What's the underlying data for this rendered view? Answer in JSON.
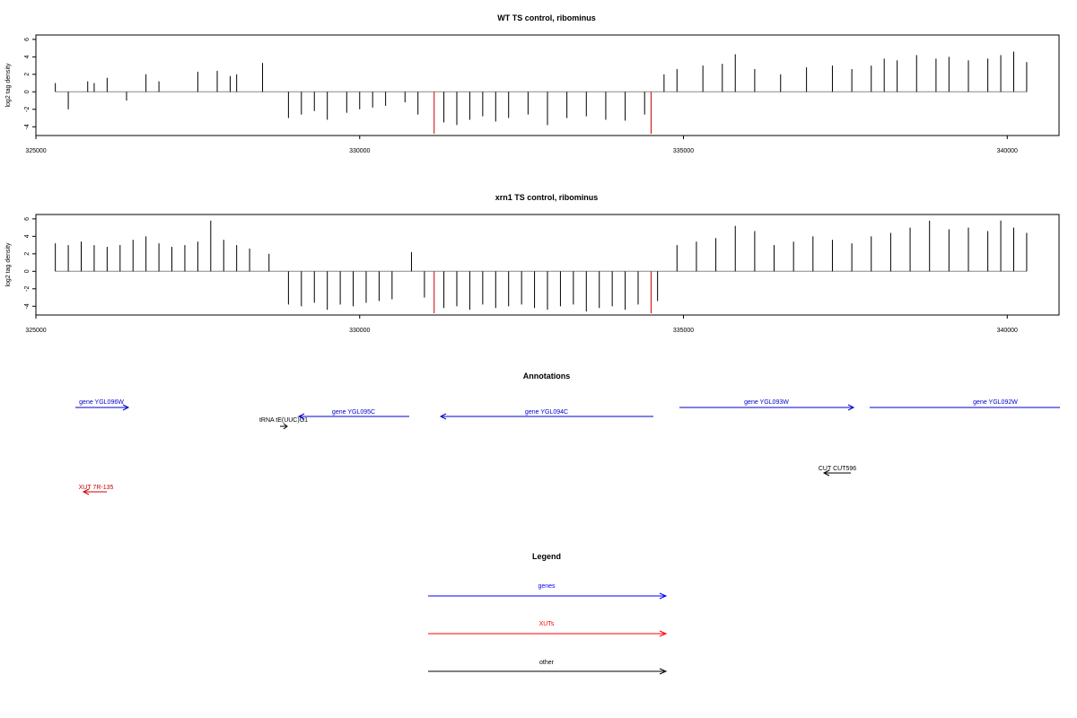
{
  "chart_data": [
    {
      "type": "bar",
      "title": "WT TS control, ribominus",
      "ylabel": "log2 tag density",
      "xlim": [
        325000,
        340800
      ],
      "ylim": [
        -5.0,
        6.5
      ],
      "xticks": [
        325000,
        330000,
        335000,
        340000
      ],
      "yticks": [
        -4,
        -2,
        0,
        2,
        4,
        6
      ],
      "series": [
        {
          "color": "#000000",
          "x": [
            325300,
            325500,
            325800,
            325900,
            326100,
            326400,
            326700,
            326900,
            327500,
            327800,
            328000,
            328100,
            328500,
            328900,
            329100,
            329300,
            329500,
            329800,
            330000,
            330200,
            330400,
            330700,
            330900,
            331300,
            331500,
            331700,
            331900,
            332100,
            332300,
            332600,
            332900,
            333200,
            333500,
            333800,
            334100,
            334400,
            334700,
            334900,
            335300,
            335600,
            335800,
            336100,
            336500,
            336900,
            337300,
            337600,
            337900,
            338100,
            338300,
            338600,
            338900,
            339100,
            339400,
            339700,
            339900,
            340100,
            340300
          ],
          "y": [
            1.0,
            -2.0,
            1.2,
            1.0,
            1.6,
            -1.0,
            2.0,
            1.2,
            2.3,
            2.4,
            1.8,
            2.0,
            3.3,
            -3.0,
            -2.6,
            -2.2,
            -3.2,
            -2.4,
            -2.0,
            -1.8,
            -1.6,
            -1.2,
            -2.6,
            -3.5,
            -3.8,
            -3.2,
            -2.8,
            -3.4,
            -3.0,
            -2.6,
            -3.8,
            -3.0,
            -2.8,
            -3.2,
            -3.3,
            -2.6,
            2.0,
            2.6,
            3.0,
            3.2,
            4.3,
            2.6,
            2.0,
            2.8,
            3.0,
            2.6,
            3.0,
            3.8,
            3.6,
            4.2,
            3.8,
            4.0,
            3.6,
            3.8,
            4.2,
            4.6,
            3.4
          ]
        },
        {
          "color": "#cc0000",
          "x": [
            331150,
            334500
          ],
          "y": [
            -4.8,
            -4.8
          ]
        }
      ]
    },
    {
      "type": "bar",
      "title": "xrn1 TS control, ribominus",
      "ylabel": "log2 tag density",
      "xlim": [
        325000,
        340800
      ],
      "ylim": [
        -5.0,
        6.5
      ],
      "xticks": [
        325000,
        330000,
        335000,
        340000
      ],
      "yticks": [
        -4,
        -2,
        0,
        2,
        4,
        6
      ],
      "series": [
        {
          "color": "#000000",
          "x": [
            325300,
            325500,
            325700,
            325900,
            326100,
            326300,
            326500,
            326700,
            326900,
            327100,
            327300,
            327500,
            327700,
            327900,
            328100,
            328300,
            328600,
            328900,
            329100,
            329300,
            329500,
            329700,
            329900,
            330100,
            330300,
            330500,
            330800,
            331000,
            331300,
            331500,
            331700,
            331900,
            332100,
            332300,
            332500,
            332700,
            332900,
            333100,
            333300,
            333500,
            333700,
            333900,
            334100,
            334300,
            334600,
            334900,
            335200,
            335500,
            335800,
            336100,
            336400,
            336700,
            337000,
            337300,
            337600,
            337900,
            338200,
            338500,
            338800,
            339100,
            339400,
            339700,
            339900,
            340100,
            340300
          ],
          "y": [
            3.2,
            3.0,
            3.4,
            3.0,
            2.8,
            3.0,
            3.6,
            4.0,
            3.2,
            2.8,
            3.0,
            3.4,
            5.8,
            3.6,
            3.0,
            2.6,
            2.0,
            -3.8,
            -4.0,
            -3.6,
            -4.4,
            -3.8,
            -4.0,
            -3.6,
            -3.4,
            -3.2,
            2.2,
            -3.0,
            -4.2,
            -4.0,
            -4.4,
            -3.8,
            -4.2,
            -4.0,
            -3.8,
            -4.2,
            -4.4,
            -4.0,
            -3.8,
            -4.6,
            -4.2,
            -4.0,
            -4.4,
            -3.8,
            -3.4,
            3.0,
            3.4,
            3.8,
            5.2,
            4.6,
            3.0,
            3.4,
            4.0,
            3.6,
            3.2,
            4.0,
            4.4,
            5.0,
            5.8,
            4.8,
            5.0,
            4.6,
            5.8,
            5.0,
            4.4
          ]
        },
        {
          "color": "#cc0000",
          "x": [
            331150,
            334500
          ],
          "y": [
            -4.8,
            -4.8
          ]
        }
      ]
    }
  ],
  "annotations": {
    "title": "Annotations",
    "features": [
      {
        "label": "gene YGL096W",
        "color": "#0000cc"
      },
      {
        "label": "tRNA tE(UUC)G1",
        "color": "#000000"
      },
      {
        "label": "gene YGL095C",
        "color": "#0000cc"
      },
      {
        "label": "gene YGL094C",
        "color": "#0000cc"
      },
      {
        "label": "gene YGL093W",
        "color": "#0000cc"
      },
      {
        "label": "gene YGL092W",
        "color": "#0000cc"
      },
      {
        "label": "CUT CUT596",
        "color": "#000000"
      },
      {
        "label": "XUT 7R-135",
        "color": "#cc0000"
      }
    ]
  },
  "legend": {
    "title": "Legend",
    "items": [
      {
        "label": "genes",
        "color": "#0000ff"
      },
      {
        "label": "XUTs",
        "color": "#ff0000"
      },
      {
        "label": "other",
        "color": "#000000"
      }
    ]
  }
}
